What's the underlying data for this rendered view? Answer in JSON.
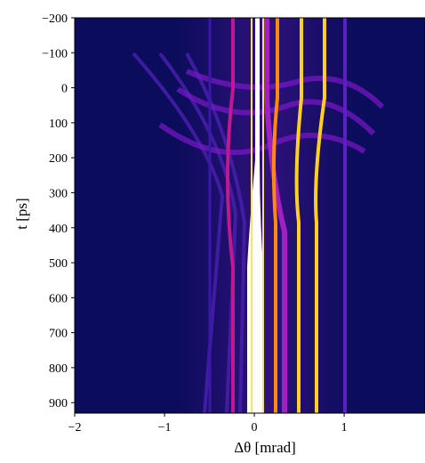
{
  "chart_data": {
    "type": "heatmap",
    "x_label": "Δθ [mrad]",
    "y_label": "t [ps]",
    "xlim": [
      -2,
      1.9
    ],
    "ylim": [
      -200,
      930
    ],
    "y_inverted": true,
    "xticks": [
      {
        "value": -2,
        "label": "−2"
      },
      {
        "value": -1,
        "label": "−1"
      },
      0,
      1
    ],
    "yticks": [
      {
        "value": -200,
        "label": "−200"
      },
      {
        "value": -100,
        "label": "−100"
      },
      0,
      100,
      200,
      300,
      400,
      500,
      600,
      700,
      800,
      900
    ],
    "colormap": "gnuplot2"
  }
}
